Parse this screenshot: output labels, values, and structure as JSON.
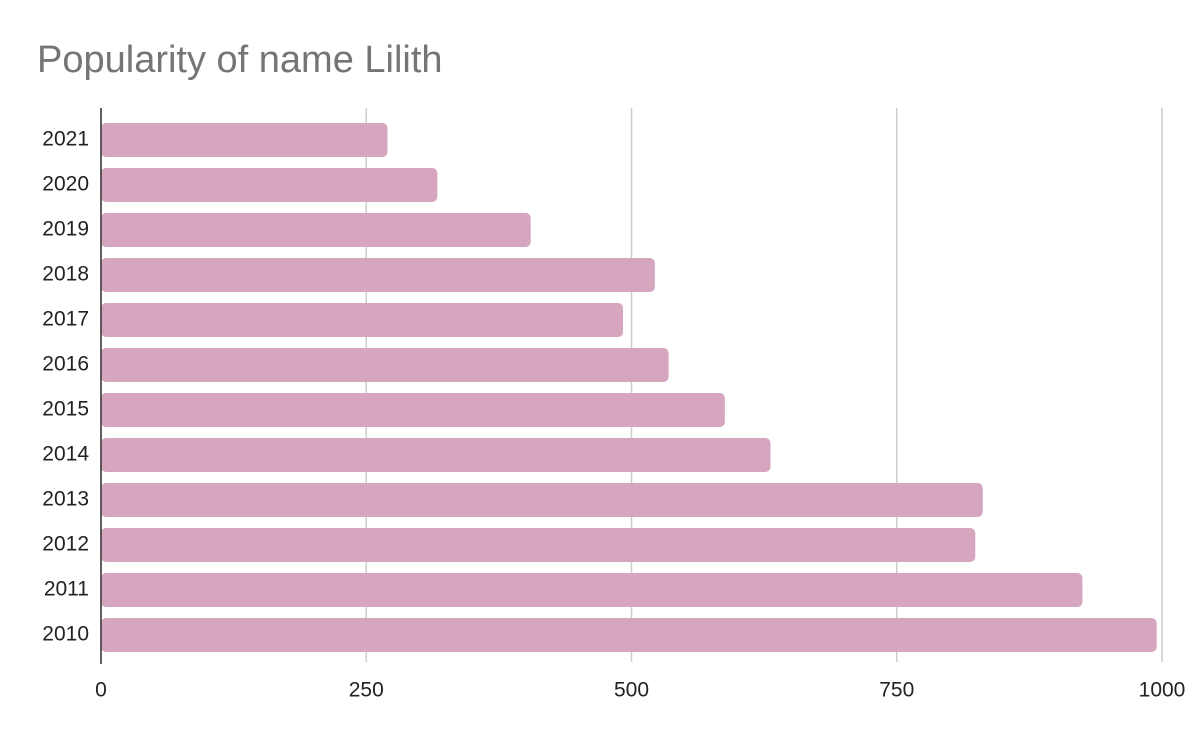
{
  "chart_data": {
    "type": "barh",
    "title": "Popularity of name Lilith",
    "categories": [
      "2021",
      "2020",
      "2019",
      "2018",
      "2017",
      "2016",
      "2015",
      "2014",
      "2013",
      "2012",
      "2011",
      "2010"
    ],
    "values": [
      270,
      317,
      405,
      522,
      492,
      535,
      588,
      631,
      831,
      824,
      925,
      995
    ],
    "color": "#d5a6bd",
    "xlim": [
      0,
      1000
    ],
    "xticks": [
      0,
      250,
      500,
      750,
      1000
    ],
    "grid": true
  }
}
